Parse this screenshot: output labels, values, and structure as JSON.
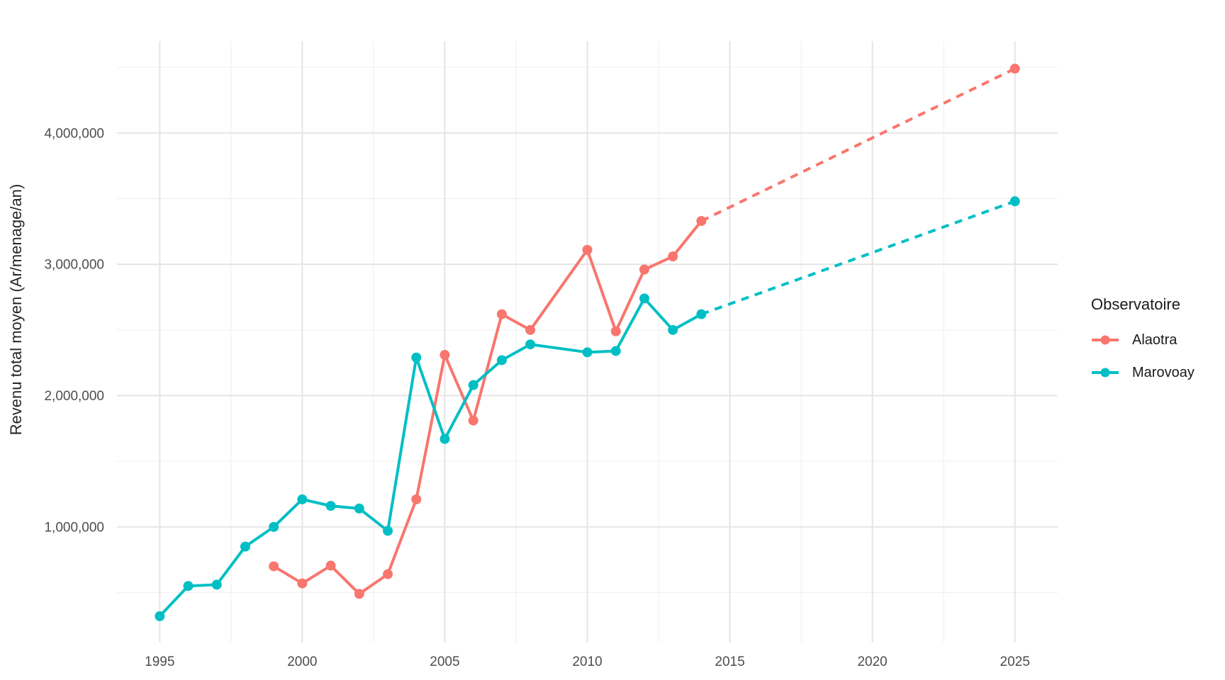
{
  "chart_data": {
    "type": "line",
    "ylabel": "Revenu total moyen (Ar/menage/an)",
    "x_tick_labels": [
      "1995",
      "2000",
      "2005",
      "2010",
      "2015",
      "2020",
      "2025"
    ],
    "x_tick_values": [
      1995,
      2000,
      2005,
      2010,
      2015,
      2020,
      2025
    ],
    "y_tick_labels": [
      "1,000,000",
      "2,000,000",
      "3,000,000",
      "4,000,000"
    ],
    "y_tick_values": [
      1000000,
      2000000,
      3000000,
      4000000
    ],
    "xlim": [
      1993.5,
      2026.5
    ],
    "ylim": [
      120000,
      4700000
    ],
    "grid": {
      "major": true,
      "minor": true
    },
    "legend": {
      "title": "Observatoire",
      "position": "right"
    },
    "style": {
      "background": "#FFFFFF",
      "grid_major_color": "#E5E5E5",
      "grid_minor_color": "#F0F0F0",
      "tick_label_color": "#4D4D4D",
      "observed_linetype": "solid",
      "projected_linetype": "dashed"
    },
    "series": [
      {
        "name": "Alaotra",
        "color": "#F8766D",
        "observed": {
          "x": [
            1999,
            2000,
            2001,
            2002,
            2003,
            2004,
            2005,
            2006,
            2007,
            2008,
            2010,
            2011,
            2012,
            2013,
            2014
          ],
          "y": [
            700000,
            570000,
            705000,
            490000,
            640000,
            1210000,
            2310000,
            1810000,
            2620000,
            2500000,
            3110000,
            2490000,
            2960000,
            3060000,
            3330000
          ]
        },
        "projected": {
          "x": [
            2014,
            2025
          ],
          "y": [
            3330000,
            4490000
          ]
        }
      },
      {
        "name": "Marovoay",
        "color": "#00BFC4",
        "observed": {
          "x": [
            1995,
            1996,
            1997,
            1998,
            1999,
            2000,
            2001,
            2002,
            2003,
            2004,
            2005,
            2006,
            2007,
            2008,
            2010,
            2011,
            2012,
            2013,
            2014
          ],
          "y": [
            320000,
            550000,
            560000,
            850000,
            1000000,
            1210000,
            1160000,
            1140000,
            970000,
            2290000,
            1670000,
            2080000,
            2270000,
            2390000,
            2330000,
            2340000,
            2740000,
            2500000,
            2620000
          ]
        },
        "projected": {
          "x": [
            2014,
            2025
          ],
          "y": [
            2620000,
            3480000
          ]
        }
      }
    ]
  }
}
